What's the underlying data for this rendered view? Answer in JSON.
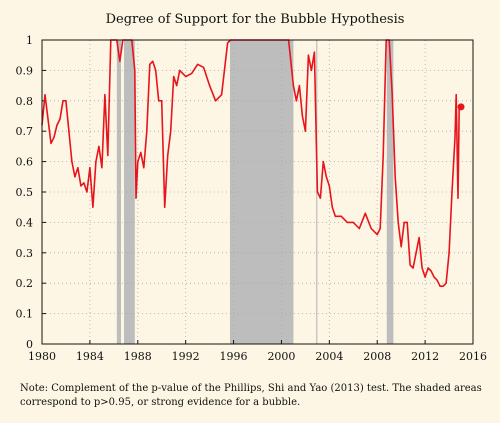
{
  "chart_data": {
    "type": "line",
    "title": "Degree of Support for the Bubble Hypothesis",
    "xlabel": "",
    "ylabel": "",
    "xlim": [
      1980,
      2016
    ],
    "ylim": [
      0,
      1
    ],
    "x_ticks": [
      "1980",
      "1984",
      "1988",
      "1992",
      "1996",
      "2000",
      "2004",
      "2008",
      "2012",
      "2016"
    ],
    "y_ticks": [
      "0",
      "0.1",
      "0.2",
      "0.3",
      "0.4",
      "0.5",
      "0.6",
      "0.7",
      "0.8",
      "0.9",
      "1"
    ],
    "grid": true,
    "line_color": "#e8141c",
    "shade_color": "#bdbdbd",
    "shaded_periods": [
      [
        1986.25,
        1986.6
      ],
      [
        1986.85,
        1987.75
      ],
      [
        1995.7,
        2001.0
      ],
      [
        2002.9,
        2003.0
      ],
      [
        2008.8,
        2009.35
      ]
    ],
    "series": [
      {
        "x": [
          1980.0,
          1980.25,
          1980.5,
          1980.75,
          1981.0,
          1981.25,
          1981.5,
          1981.75,
          1982.0,
          1982.25,
          1982.5,
          1982.75,
          1983.0,
          1983.25,
          1983.5,
          1983.75,
          1984.0,
          1984.25,
          1984.5,
          1984.75,
          1985.0,
          1985.25,
          1985.5,
          1985.75,
          1986.0,
          1986.25,
          1986.5,
          1986.75,
          1987.0,
          1987.5,
          1987.75,
          1987.85,
          1988.0,
          1988.25,
          1988.5,
          1988.75,
          1989.0,
          1989.25,
          1989.5,
          1989.75,
          1990.0,
          1990.25,
          1990.5,
          1990.75,
          1991.0,
          1991.25,
          1991.5,
          1991.75,
          1992.0,
          1992.5,
          1993.0,
          1993.5,
          1994.0,
          1994.5,
          1995.0,
          1995.5,
          1995.75,
          1996.0,
          1997.0,
          1998.0,
          1999.0,
          2000.0,
          2000.6,
          2001.0,
          2001.25,
          2001.5,
          2001.75,
          2002.0,
          2002.25,
          2002.5,
          2002.75,
          2003.0,
          2003.25,
          2003.5,
          2003.75,
          2004.0,
          2004.25,
          2004.5,
          2005.0,
          2005.5,
          2006.0,
          2006.5,
          2007.0,
          2007.5,
          2008.0,
          2008.25,
          2008.5,
          2008.75,
          2009.0,
          2009.25,
          2009.5,
          2009.75,
          2010.0,
          2010.25,
          2010.5,
          2010.75,
          2011.0,
          2011.25,
          2011.5,
          2011.75,
          2012.0,
          2012.25,
          2012.5,
          2012.75,
          2013.0,
          2013.25,
          2013.5,
          2013.75,
          2014.0,
          2014.25,
          2014.5,
          2014.6,
          2014.75,
          2014.85,
          2015.0
        ],
        "values": [
          0.72,
          0.82,
          0.74,
          0.66,
          0.68,
          0.72,
          0.74,
          0.8,
          0.8,
          0.7,
          0.6,
          0.55,
          0.58,
          0.52,
          0.53,
          0.5,
          0.58,
          0.45,
          0.6,
          0.65,
          0.58,
          0.82,
          0.62,
          1.0,
          1.0,
          1.0,
          0.93,
          1.0,
          1.0,
          1.0,
          0.9,
          0.48,
          0.6,
          0.63,
          0.58,
          0.7,
          0.92,
          0.93,
          0.9,
          0.8,
          0.8,
          0.45,
          0.62,
          0.7,
          0.88,
          0.85,
          0.9,
          0.89,
          0.88,
          0.89,
          0.92,
          0.91,
          0.85,
          0.8,
          0.82,
          0.99,
          1.0,
          1.0,
          1.0,
          1.0,
          1.0,
          1.0,
          1.0,
          0.85,
          0.8,
          0.85,
          0.75,
          0.7,
          0.95,
          0.9,
          0.96,
          0.5,
          0.48,
          0.6,
          0.55,
          0.52,
          0.45,
          0.42,
          0.42,
          0.4,
          0.4,
          0.38,
          0.43,
          0.38,
          0.36,
          0.38,
          0.62,
          1.0,
          1.0,
          0.82,
          0.55,
          0.4,
          0.32,
          0.4,
          0.4,
          0.26,
          0.25,
          0.3,
          0.35,
          0.25,
          0.22,
          0.25,
          0.24,
          0.22,
          0.21,
          0.19,
          0.19,
          0.2,
          0.3,
          0.5,
          0.68,
          0.82,
          0.48,
          0.78,
          0.78
        ]
      }
    ]
  },
  "note": "Note: Complement of the p-value of the Phillips, Shi and Yao (2013) test. The shaded areas correspond to p>0.95, or strong evidence for a bubble."
}
